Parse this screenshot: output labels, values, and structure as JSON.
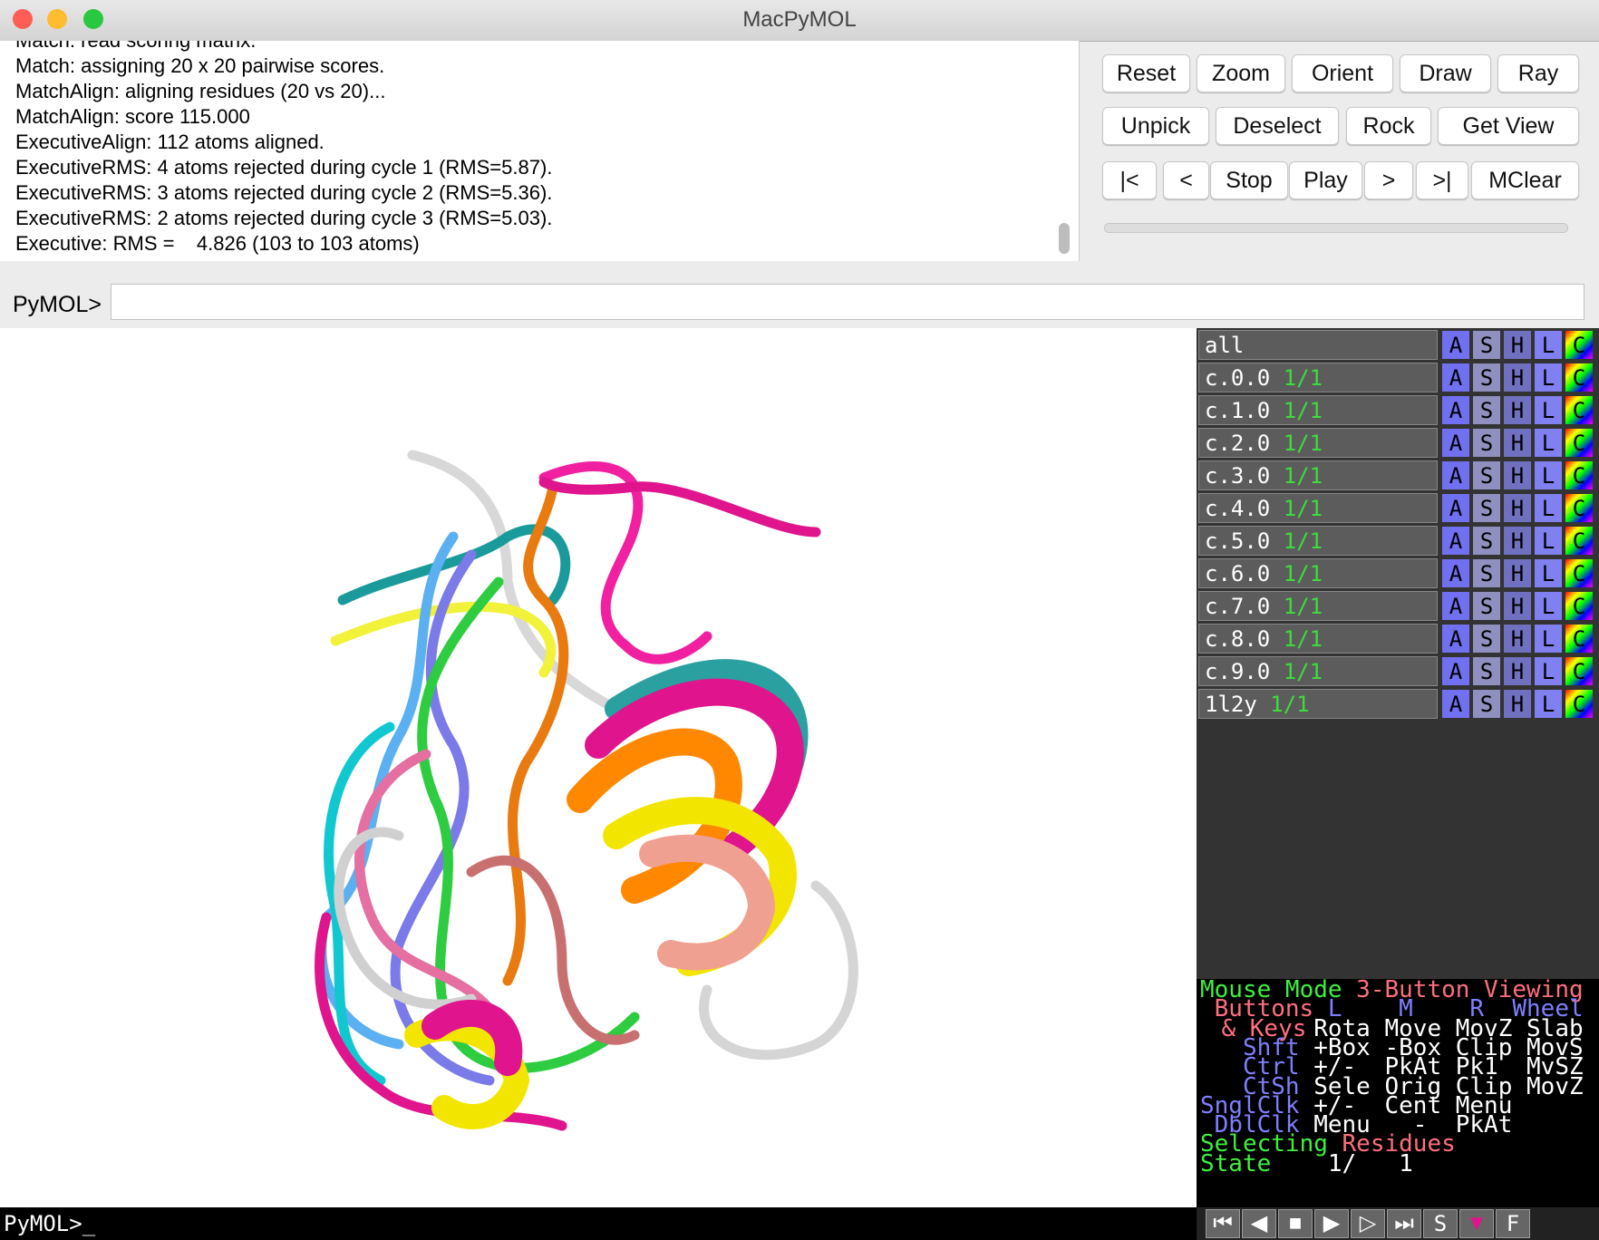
{
  "window": {
    "title": "MacPyMOL"
  },
  "log": {
    "lines": [
      "Match: read scoring matrix.",
      "Match: assigning 20 x 20 pairwise scores.",
      "MatchAlign: aligning residues (20 vs 20)...",
      "MatchAlign: score 115.000",
      "ExecutiveAlign: 112 atoms aligned.",
      "ExecutiveRMS: 4 atoms rejected during cycle 1 (RMS=5.87).",
      "ExecutiveRMS: 3 atoms rejected during cycle 2 (RMS=5.36).",
      "ExecutiveRMS: 2 atoms rejected during cycle 3 (RMS=5.03).",
      "Executive: RMS =    4.826 (103 to 103 atoms)"
    ]
  },
  "buttons": {
    "rows": [
      [
        "Reset",
        "Zoom",
        "Orient",
        "Draw",
        "Ray"
      ],
      [
        "Unpick",
        "Deselect",
        "Rock",
        "Get View"
      ],
      [
        "|<",
        "<",
        "Stop",
        "Play",
        ">",
        ">|",
        "MClear"
      ]
    ]
  },
  "command": {
    "prompt": "PyMOL>"
  },
  "objects": {
    "items": [
      {
        "name": "all"
      },
      {
        "name": "c.0.0",
        "state": "1/1"
      },
      {
        "name": "c.1.0",
        "state": "1/1"
      },
      {
        "name": "c.2.0",
        "state": "1/1"
      },
      {
        "name": "c.3.0",
        "state": "1/1"
      },
      {
        "name": "c.4.0",
        "state": "1/1"
      },
      {
        "name": "c.5.0",
        "state": "1/1"
      },
      {
        "name": "c.6.0",
        "state": "1/1"
      },
      {
        "name": "c.7.0",
        "state": "1/1"
      },
      {
        "name": "c.8.0",
        "state": "1/1"
      },
      {
        "name": "c.9.0",
        "state": "1/1"
      },
      {
        "name": "1l2y",
        "state": "1/1"
      }
    ],
    "actions": [
      "A",
      "S",
      "H",
      "L",
      "C"
    ]
  },
  "mouse_panel": {
    "rows": [
      [
        "Mouse Mode",
        "3-Button Viewing"
      ],
      [
        "Buttons",
        "L",
        "M",
        "R",
        "Wheel"
      ],
      [
        "& Keys",
        "Rota",
        "Move",
        "MovZ",
        "Slab"
      ],
      [
        "Shft",
        "+Box",
        "-Box",
        "Clip",
        "MovS"
      ],
      [
        "Ctrl",
        "+/-",
        "PkAt",
        "Pk1",
        "MvSZ"
      ],
      [
        "CtSh",
        "Sele",
        "Orig",
        "Clip",
        "MovZ"
      ],
      [
        "SnglClk",
        "+/-",
        "Cent",
        "Menu"
      ],
      [
        "DblClk",
        "Menu",
        "-",
        "PkAt"
      ],
      [
        "Selecting",
        "Residues"
      ],
      [
        "State",
        "1/",
        "1"
      ]
    ]
  },
  "movie_controls": {
    "labels": [
      "S",
      "F"
    ]
  },
  "bottom_prompt": "PyMOL>_"
}
